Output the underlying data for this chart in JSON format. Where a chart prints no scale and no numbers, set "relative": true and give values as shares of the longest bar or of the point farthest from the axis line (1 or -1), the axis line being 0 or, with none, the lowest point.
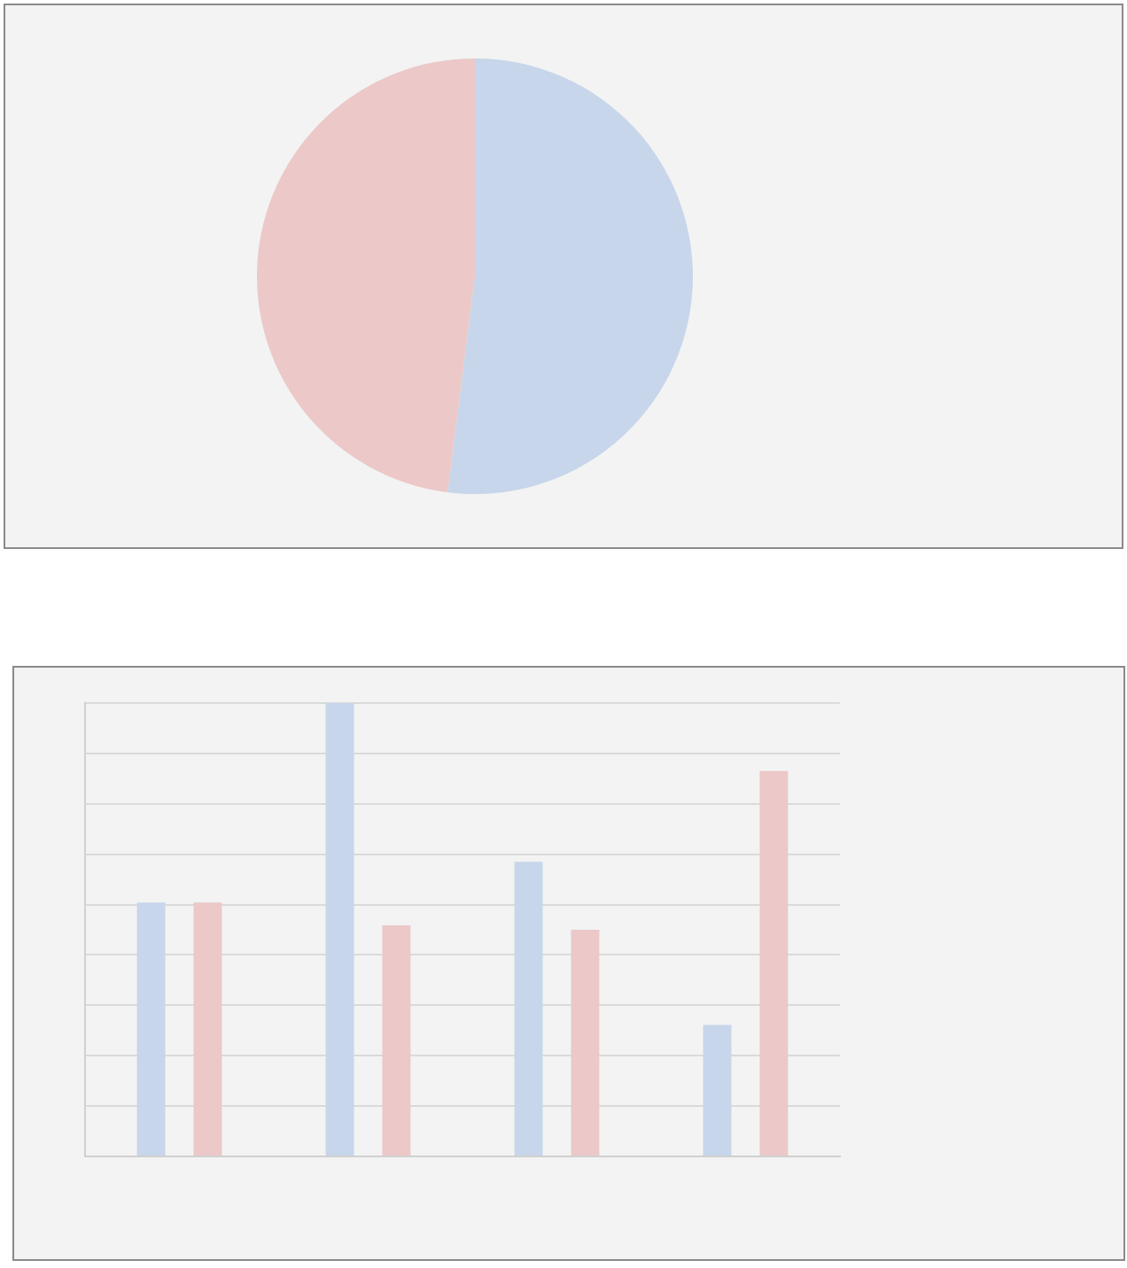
{
  "chart_data": [
    {
      "type": "pie",
      "categories": [
        null,
        null
      ],
      "values": [
        52,
        48
      ],
      "colors": [
        "#c7d6ea",
        "#ecc8c8"
      ]
    },
    {
      "type": "bar",
      "relative": true,
      "grid": "y",
      "categories": [
        null,
        null,
        null,
        null
      ],
      "series": [
        {
          "color": "#c7d6ea",
          "values": [
            0.56,
            1,
            0.65,
            0.29
          ]
        },
        {
          "color": "#ecc8c8",
          "values": [
            0.56,
            0.51,
            0.5,
            0.85
          ]
        }
      ]
    }
  ]
}
